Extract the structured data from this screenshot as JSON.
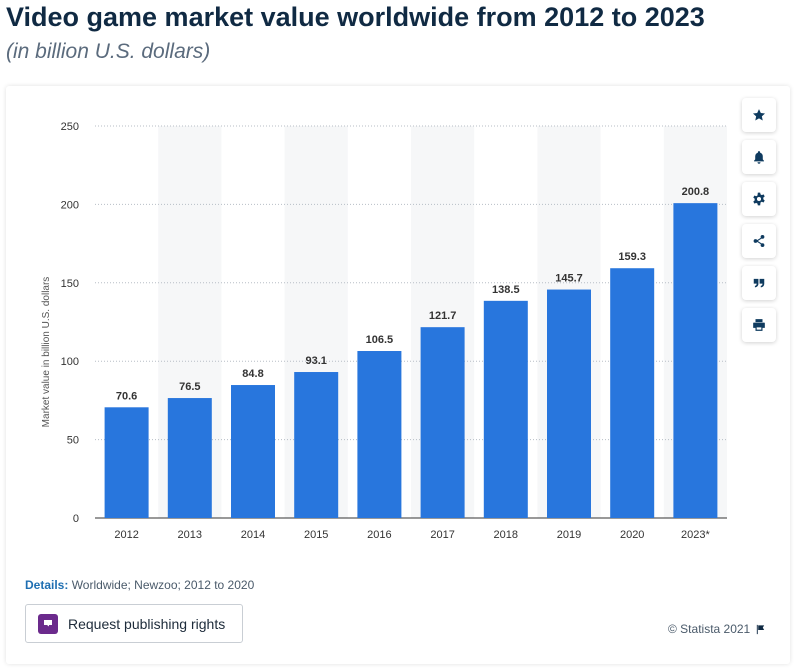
{
  "header": {
    "title": "Video game market value worldwide from 2012 to 2023",
    "subtitle": "(in billion U.S. dollars)"
  },
  "chart_data": {
    "type": "bar",
    "categories": [
      "2012",
      "2013",
      "2014",
      "2015",
      "2016",
      "2017",
      "2018",
      "2019",
      "2020",
      "2023*"
    ],
    "values": [
      70.6,
      76.5,
      84.8,
      93.1,
      106.5,
      121.7,
      138.5,
      145.7,
      159.3,
      200.8
    ],
    "value_labels": [
      "70.6",
      "76.5",
      "84.8",
      "93.1",
      "106.5",
      "121.7",
      "138.5",
      "145.7",
      "159.3",
      "200.8"
    ],
    "ylabel": "Market value in billion U.S. dollars",
    "xlabel": "",
    "ylim": [
      0,
      250
    ],
    "yticks": [
      0,
      50,
      100,
      150,
      200,
      250
    ],
    "ytick_labels": [
      "0",
      "50",
      "100",
      "150",
      "200",
      "250"
    ],
    "grid": true,
    "legend": "none",
    "bar_color": "#2876dd",
    "alternating_band_color": "#f6f7f8"
  },
  "toolbar": {
    "icons": [
      "star-icon",
      "bell-icon",
      "gear-icon",
      "share-icon",
      "quote-icon",
      "print-icon"
    ]
  },
  "footer": {
    "details_label": "Details:",
    "details_text": " Worldwide; Newzoo; 2012 to 2020",
    "publish_button_label": "Request publishing rights",
    "credit": "© Statista 2021"
  },
  "colors": {
    "title": "#102a43",
    "subtitle": "#5b6b7d",
    "publish_icon_bg": "#6b2a8c"
  }
}
